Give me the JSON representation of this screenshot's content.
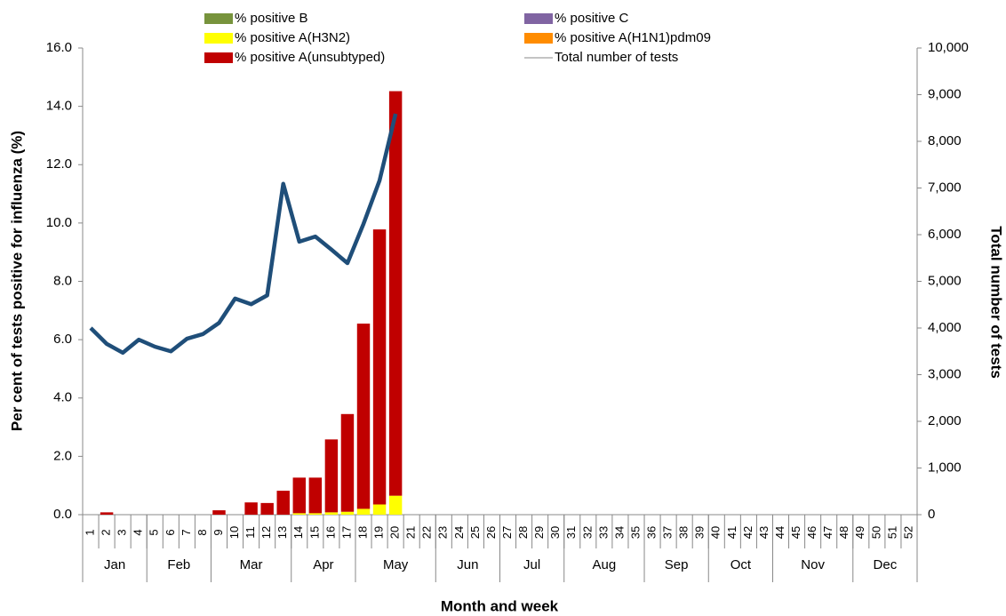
{
  "chart_data": {
    "type": "bar-line",
    "x_label": "Month and week",
    "y_label": "Per cent of tests positive for influenza (%)",
    "y2_label": "Total number of tests",
    "categories": [
      "1",
      "2",
      "3",
      "4",
      "5",
      "6",
      "7",
      "8",
      "9",
      "10",
      "11",
      "12",
      "13",
      "14",
      "15",
      "16",
      "17",
      "18",
      "19",
      "20",
      "21",
      "22",
      "23",
      "24",
      "25",
      "26",
      "27",
      "28",
      "29",
      "30",
      "31",
      "32",
      "33",
      "34",
      "35",
      "36",
      "37",
      "38",
      "39",
      "40",
      "41",
      "42",
      "43",
      "44",
      "45",
      "46",
      "47",
      "48",
      "49",
      "50",
      "51",
      "52"
    ],
    "month_groups": [
      {
        "label": "Jan",
        "first": "1",
        "last": "4"
      },
      {
        "label": "Feb",
        "first": "5",
        "last": "8"
      },
      {
        "label": "Mar",
        "first": "9",
        "last": "13"
      },
      {
        "label": "Apr",
        "first": "14",
        "last": "17"
      },
      {
        "label": "May",
        "first": "18",
        "last": "22"
      },
      {
        "label": "Jun",
        "first": "23",
        "last": "26"
      },
      {
        "label": "Jul",
        "first": "27",
        "last": "30"
      },
      {
        "label": "Aug",
        "first": "31",
        "last": "35"
      },
      {
        "label": "Sep",
        "first": "36",
        "last": "39"
      },
      {
        "label": "Oct",
        "first": "40",
        "last": "43"
      },
      {
        "label": "Nov",
        "first": "44",
        "last": "48"
      },
      {
        "label": "Dec",
        "first": "49",
        "last": "52"
      }
    ],
    "series": [
      {
        "name": "% positive B",
        "color": "#77933c",
        "stacked": true,
        "values": [
          0,
          0,
          0,
          0,
          0,
          0,
          0,
          0,
          0,
          0,
          0,
          0,
          0,
          0,
          0,
          0,
          0,
          0,
          0,
          0,
          null,
          null,
          null,
          null,
          null,
          null,
          null,
          null,
          null,
          null,
          null,
          null,
          null,
          null,
          null,
          null,
          null,
          null,
          null,
          null,
          null,
          null,
          null,
          null,
          null,
          null,
          null,
          null,
          null,
          null,
          null,
          null
        ]
      },
      {
        "name": "% positive C",
        "color": "#8064a2",
        "stacked": true,
        "values": [
          0,
          0,
          0,
          0,
          0,
          0,
          0,
          0,
          0,
          0,
          0,
          0,
          0,
          0,
          0,
          0,
          0,
          0,
          0,
          0,
          null,
          null,
          null,
          null,
          null,
          null,
          null,
          null,
          null,
          null,
          null,
          null,
          null,
          null,
          null,
          null,
          null,
          null,
          null,
          null,
          null,
          null,
          null,
          null,
          null,
          null,
          null,
          null,
          null,
          null,
          null,
          null
        ]
      },
      {
        "name": "% positive A(H3N2)",
        "color": "#ffff00",
        "stacked": true,
        "values": [
          0,
          0,
          0,
          0,
          0,
          0,
          0,
          0,
          0,
          0,
          0,
          0,
          0,
          0.05,
          0.05,
          0.08,
          0.1,
          0.2,
          0.35,
          0.65,
          null,
          null,
          null,
          null,
          null,
          null,
          null,
          null,
          null,
          null,
          null,
          null,
          null,
          null,
          null,
          null,
          null,
          null,
          null,
          null,
          null,
          null,
          null,
          null,
          null,
          null,
          null,
          null,
          null,
          null,
          null,
          null
        ]
      },
      {
        "name": "% positive A(H1N1)pdm09",
        "color": "#ff8c00",
        "stacked": true,
        "values": [
          0,
          0,
          0,
          0,
          0,
          0,
          0,
          0,
          0,
          0,
          0,
          0,
          0,
          0,
          0,
          0,
          0,
          0,
          0,
          0,
          null,
          null,
          null,
          null,
          null,
          null,
          null,
          null,
          null,
          null,
          null,
          null,
          null,
          null,
          null,
          null,
          null,
          null,
          null,
          null,
          null,
          null,
          null,
          null,
          null,
          null,
          null,
          null,
          null,
          null,
          null,
          null
        ]
      },
      {
        "name": "% positive A(unsubtyped)",
        "color": "#c00000",
        "stacked": true,
        "values": [
          0,
          0.08,
          0,
          0,
          0,
          0,
          0,
          0,
          0.15,
          0,
          0.42,
          0.4,
          0.82,
          1.22,
          1.22,
          2.5,
          3.35,
          6.35,
          9.43,
          13.87,
          null,
          null,
          null,
          null,
          null,
          null,
          null,
          null,
          null,
          null,
          null,
          null,
          null,
          null,
          null,
          null,
          null,
          null,
          null,
          null,
          null,
          null,
          null,
          null,
          null,
          null,
          null,
          null,
          null,
          null,
          null,
          null
        ]
      },
      {
        "name": "Total number of tests",
        "color": "#1f4e79",
        "axis": "y2",
        "values": [
          4000,
          3660,
          3470,
          3750,
          3600,
          3500,
          3770,
          3870,
          4110,
          4630,
          4510,
          4700,
          7090,
          5850,
          5960,
          5680,
          5390,
          6230,
          7160,
          8590,
          null,
          null,
          null,
          null,
          null,
          null,
          null,
          null,
          null,
          null,
          null,
          null,
          null,
          null,
          null,
          null,
          null,
          null,
          null,
          null,
          null,
          null,
          null,
          null,
          null,
          null,
          null,
          null,
          null,
          null,
          null,
          null
        ]
      }
    ],
    "ylim": [
      0,
      16
    ],
    "yticks": [
      {
        "value": 0,
        "label": "0.0"
      },
      {
        "value": 2,
        "label": "2.0"
      },
      {
        "value": 4,
        "label": "4.0"
      },
      {
        "value": 6,
        "label": "6.0"
      },
      {
        "value": 8,
        "label": "8.0"
      },
      {
        "value": 10,
        "label": "10.0"
      },
      {
        "value": 12,
        "label": "12.0"
      },
      {
        "value": 14,
        "label": "14.0"
      },
      {
        "value": 16,
        "label": "16.0"
      }
    ],
    "y2lim": [
      0,
      10000
    ],
    "y2ticks": [
      0,
      {
        "value": 1000,
        "label": "1,000"
      },
      {
        "value": 2000,
        "label": "2,000"
      },
      {
        "value": 3000,
        "label": "3,000"
      },
      {
        "value": 4000,
        "label": "4,000"
      },
      {
        "value": 5000,
        "label": "5,000"
      },
      {
        "value": 6000,
        "label": "6,000"
      },
      {
        "value": 7000,
        "label": "7,000"
      },
      {
        "value": 8000,
        "label": "8,000"
      },
      {
        "value": 9000,
        "label": "9,000"
      },
      {
        "value": 10000,
        "label": "10,000"
      }
    ],
    "grid": false,
    "legend": "top"
  }
}
